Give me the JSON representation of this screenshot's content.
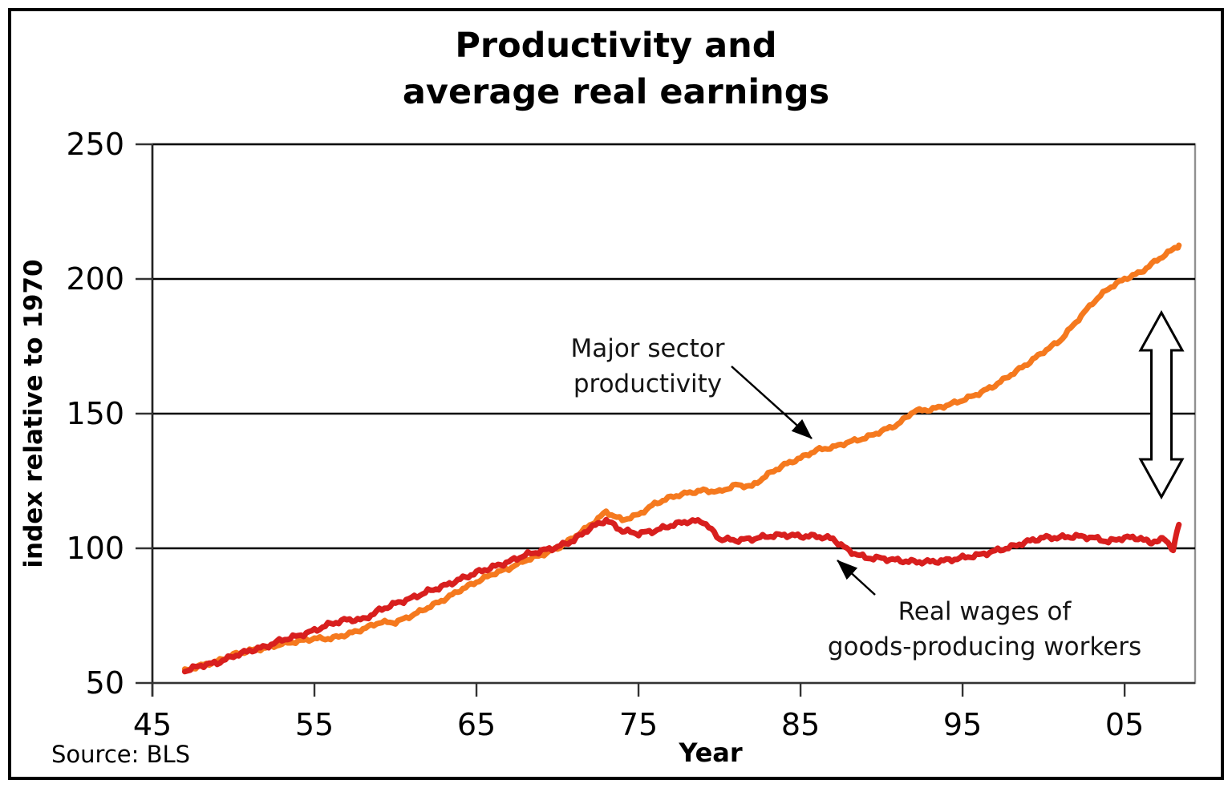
{
  "figure": {
    "title_line1": "Productivity and",
    "title_line2": "average real earnings",
    "y_axis_label": "index relative to 1970",
    "x_axis_label": "Year",
    "source": "Source: BLS"
  },
  "annotations": {
    "productivity": {
      "line1": "Major sector",
      "line2": "productivity"
    },
    "wages": {
      "line1": "Real wages of",
      "line2": "goods-producing workers"
    }
  },
  "colors": {
    "productivity_line": "#F5791E",
    "wages_line": "#D81F1E",
    "gridline": "#000000",
    "plot_frame": "#909090",
    "axis": "#333333",
    "annotation_arrow": "#000000",
    "updown_arrow_fill": "#ffffff",
    "updown_arrow_stroke": "#000000"
  },
  "chart_data": {
    "type": "line",
    "title": "Productivity and average real earnings",
    "xlabel": "Year",
    "ylabel": "index relative to 1970",
    "source": "Source: BLS",
    "xlim": [
      1945,
      2009.35
    ],
    "ylim": [
      50,
      250
    ],
    "grid": "horizontal",
    "legend_position": "annotated-on-chart",
    "y_ticks": [
      {
        "value": 50,
        "label": "50"
      },
      {
        "value": 100,
        "label": "100"
      },
      {
        "value": 150,
        "label": "150"
      },
      {
        "value": 200,
        "label": "200"
      },
      {
        "value": 250,
        "label": "250"
      }
    ],
    "x_ticks": [
      {
        "year": 1945,
        "label": "45"
      },
      {
        "year": 1955,
        "label": "55"
      },
      {
        "year": 1965,
        "label": "65"
      },
      {
        "year": 1975,
        "label": "75"
      },
      {
        "year": 1985,
        "label": "85"
      },
      {
        "year": 1995,
        "label": "95"
      },
      {
        "year": 2005,
        "label": "05"
      }
    ],
    "series": [
      {
        "name": "Major sector productivity",
        "color": "#F5791E",
        "x": [
          1947,
          1948,
          1949,
          1950,
          1951,
          1952,
          1953,
          1954,
          1955,
          1956,
          1957,
          1958,
          1959,
          1960,
          1961,
          1962,
          1963,
          1964,
          1965,
          1966,
          1967,
          1968,
          1969,
          1970,
          1971,
          1972,
          1973,
          1974,
          1975,
          1976,
          1977,
          1978,
          1979,
          1980,
          1981,
          1982,
          1983,
          1984,
          1985,
          1986,
          1987,
          1988,
          1989,
          1990,
          1991,
          1992,
          1993,
          1994,
          1995,
          1996,
          1997,
          1998,
          1999,
          2000,
          2001,
          2002,
          2003,
          2004,
          2005,
          2006,
          2007,
          2008,
          2008.35
        ],
        "values": [
          54.5,
          56.5,
          58,
          60.5,
          62,
          63,
          64.5,
          65.5,
          66.5,
          66.5,
          68,
          70,
          72.5,
          72.5,
          75,
          78,
          81,
          84.5,
          87.5,
          90.5,
          92.5,
          95.5,
          97.5,
          100,
          104,
          108.5,
          113.5,
          110.5,
          112.5,
          116.5,
          119,
          120.5,
          121.5,
          121,
          123.5,
          123,
          127.5,
          131,
          133.5,
          136.5,
          137.5,
          139.5,
          141,
          143.5,
          146,
          151,
          151.5,
          153,
          155,
          157.5,
          160.5,
          164.5,
          168.5,
          173,
          177,
          184,
          191,
          196.5,
          200,
          202.5,
          207,
          211,
          212.5
        ]
      },
      {
        "name": "Real wages of goods-producing workers",
        "color": "#D81F1E",
        "x": [
          1947,
          1948,
          1949,
          1950,
          1951,
          1952,
          1953,
          1954,
          1955,
          1956,
          1957,
          1958,
          1959,
          1960,
          1961,
          1962,
          1963,
          1964,
          1965,
          1966,
          1967,
          1968,
          1969,
          1970,
          1971,
          1972,
          1973,
          1974,
          1975,
          1976,
          1977,
          1978,
          1979,
          1980,
          1981,
          1982,
          1983,
          1984,
          1985,
          1986,
          1987,
          1988,
          1989,
          1990,
          1991,
          1992,
          1993,
          1994,
          1995,
          1996,
          1997,
          1998,
          1999,
          2000,
          2001,
          2002,
          2003,
          2004,
          2005,
          2006,
          2006.5,
          2007,
          2007.5,
          2008,
          2008.35
        ],
        "values": [
          54.5,
          56.5,
          57.5,
          60,
          62,
          63.5,
          66,
          67.5,
          69.5,
          72,
          73.5,
          73.5,
          77,
          79.5,
          81.5,
          84,
          86,
          88.5,
          91,
          93,
          95,
          97.5,
          99,
          100.5,
          103,
          107.5,
          110.5,
          106.5,
          105.5,
          106.5,
          108.5,
          110,
          110,
          103.5,
          103,
          103.5,
          104.5,
          105,
          104.5,
          104.5,
          103.5,
          99,
          96.5,
          96.3,
          95.5,
          95,
          95,
          95.5,
          96.5,
          97.5,
          99,
          100.5,
          102.5,
          104,
          104,
          104.5,
          104,
          102.5,
          104,
          103.8,
          102,
          103,
          103.2,
          99.8,
          108.8
        ]
      }
    ]
  }
}
